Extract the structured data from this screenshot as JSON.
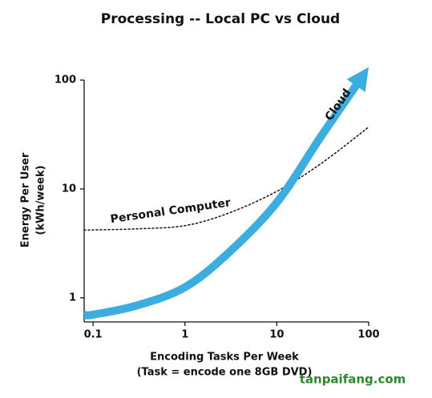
{
  "chart_data": {
    "type": "line",
    "title": "Processing -- Local PC vs Cloud",
    "xlabel": [
      "Encoding Tasks Per Week",
      "(Task = encode one 8GB DVD)"
    ],
    "ylabel": [
      "Energy Per User",
      "(kWh/week)"
    ],
    "xscale": "log",
    "yscale": "log",
    "xlim": [
      0.08,
      100
    ],
    "ylim": [
      0.6,
      100
    ],
    "xticks": [
      0.1,
      1,
      10,
      100
    ],
    "yticks": [
      1,
      10,
      100
    ],
    "grid": false,
    "series": [
      {
        "name": "Personal Computer",
        "color": "#111111",
        "style": "dotted",
        "x": [
          0.08,
          0.1,
          0.3,
          1,
          3,
          10,
          30,
          100
        ],
        "values": [
          4.2,
          4.2,
          4.3,
          4.6,
          6,
          9.5,
          17,
          37
        ]
      },
      {
        "name": "Cloud",
        "color": "#3cade0",
        "style": "arrow",
        "x": [
          0.08,
          0.1,
          0.3,
          1,
          3,
          10,
          30,
          80
        ],
        "values": [
          0.7,
          0.7,
          0.85,
          1.25,
          2.6,
          7.5,
          30,
          100
        ]
      }
    ],
    "watermark": "tanpaifang.com"
  }
}
